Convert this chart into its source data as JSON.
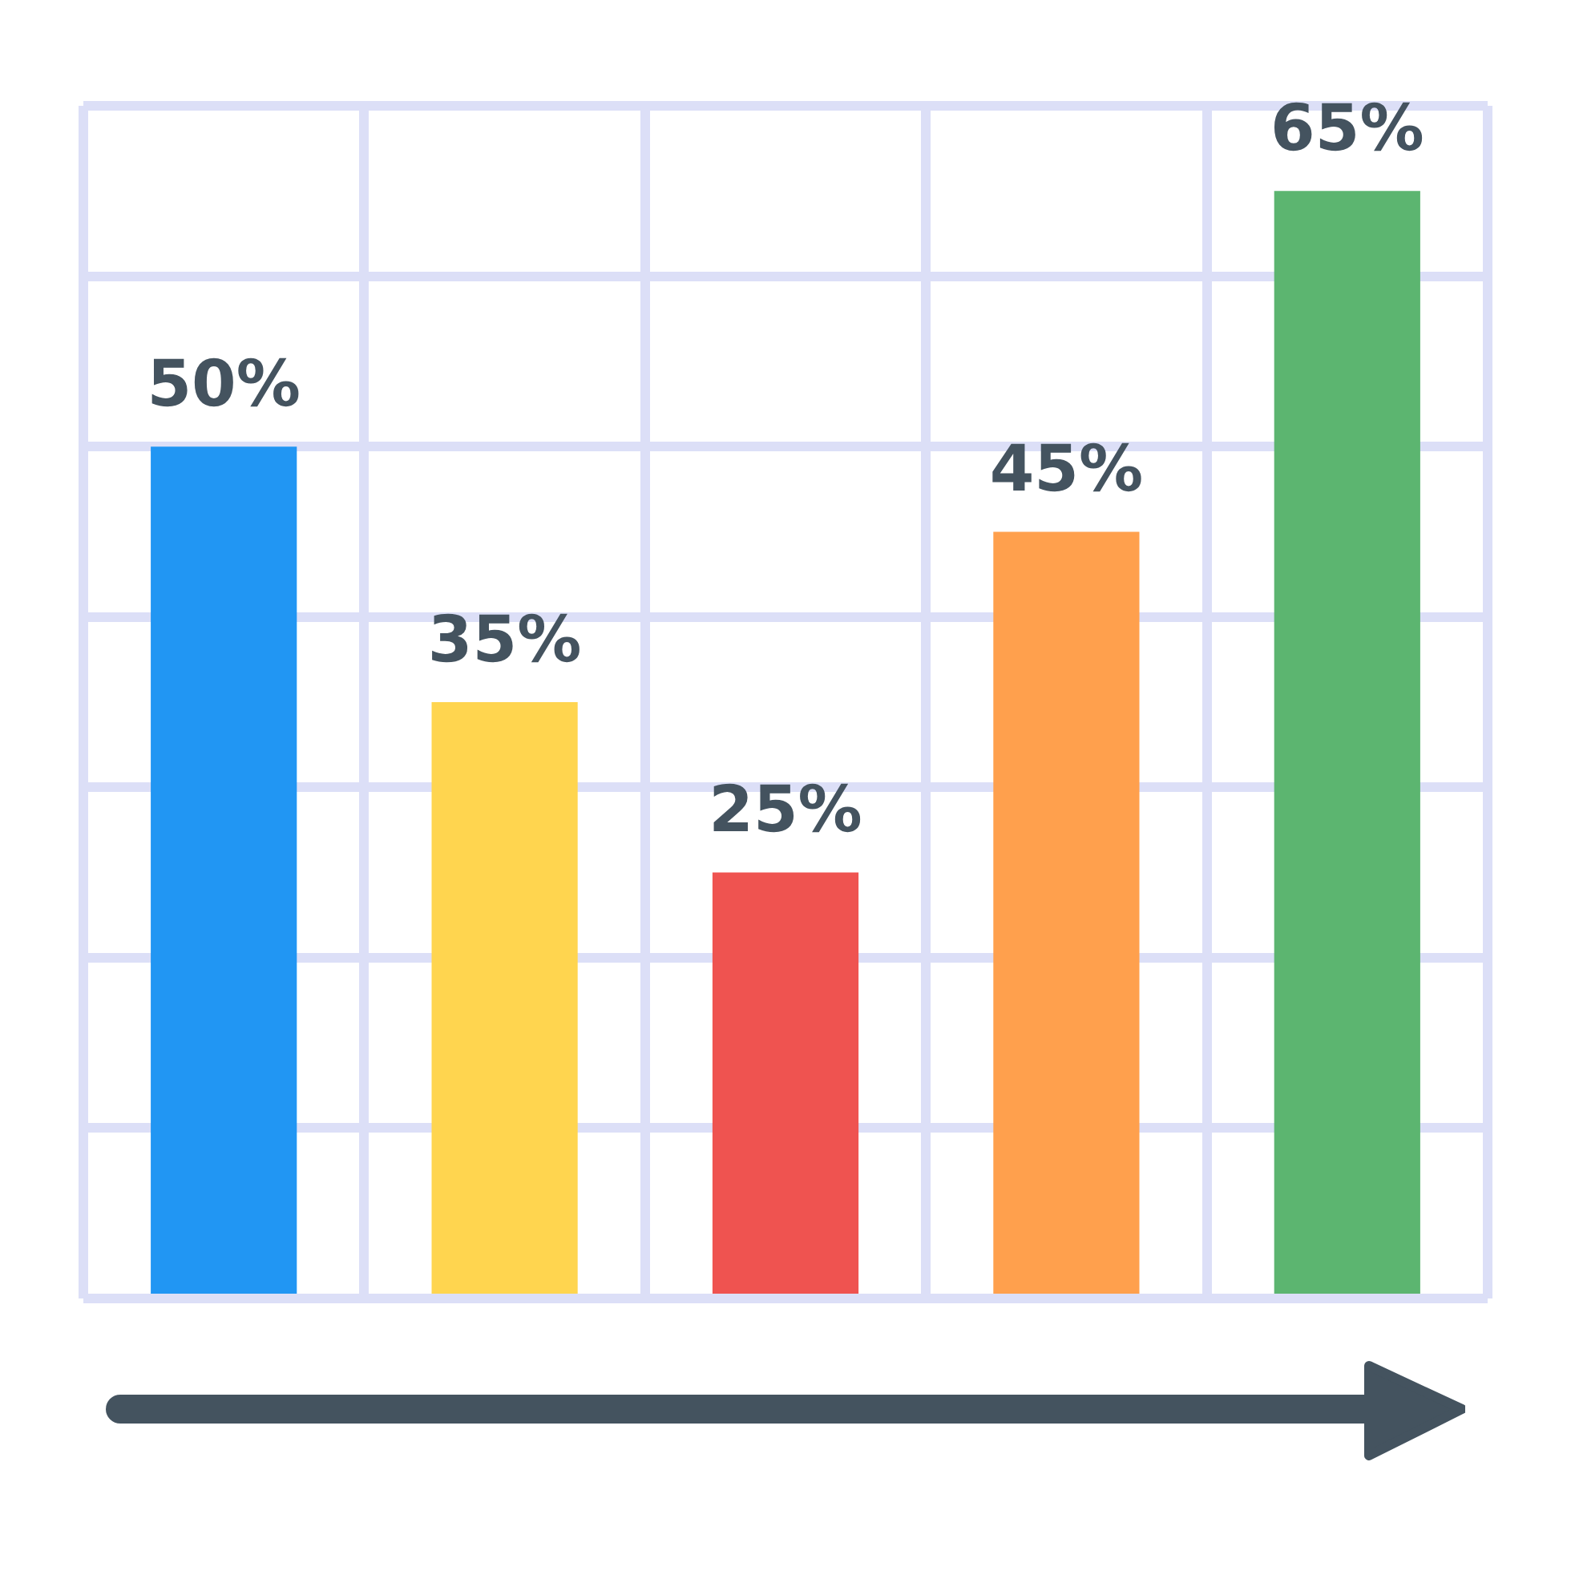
{
  "chart_data": {
    "type": "bar",
    "categories": [
      null,
      null,
      null,
      null,
      null
    ],
    "values": [
      50,
      35,
      25,
      45,
      65
    ],
    "colors": [
      "#2196f3",
      "#ffd54f",
      "#ef5350",
      "#ffa04d",
      "#5cb570"
    ],
    "value_labels": [
      "50%",
      "35%",
      "25%",
      "45%",
      "65%"
    ],
    "grid": true,
    "tick_labels": false,
    "legend": false
  }
}
